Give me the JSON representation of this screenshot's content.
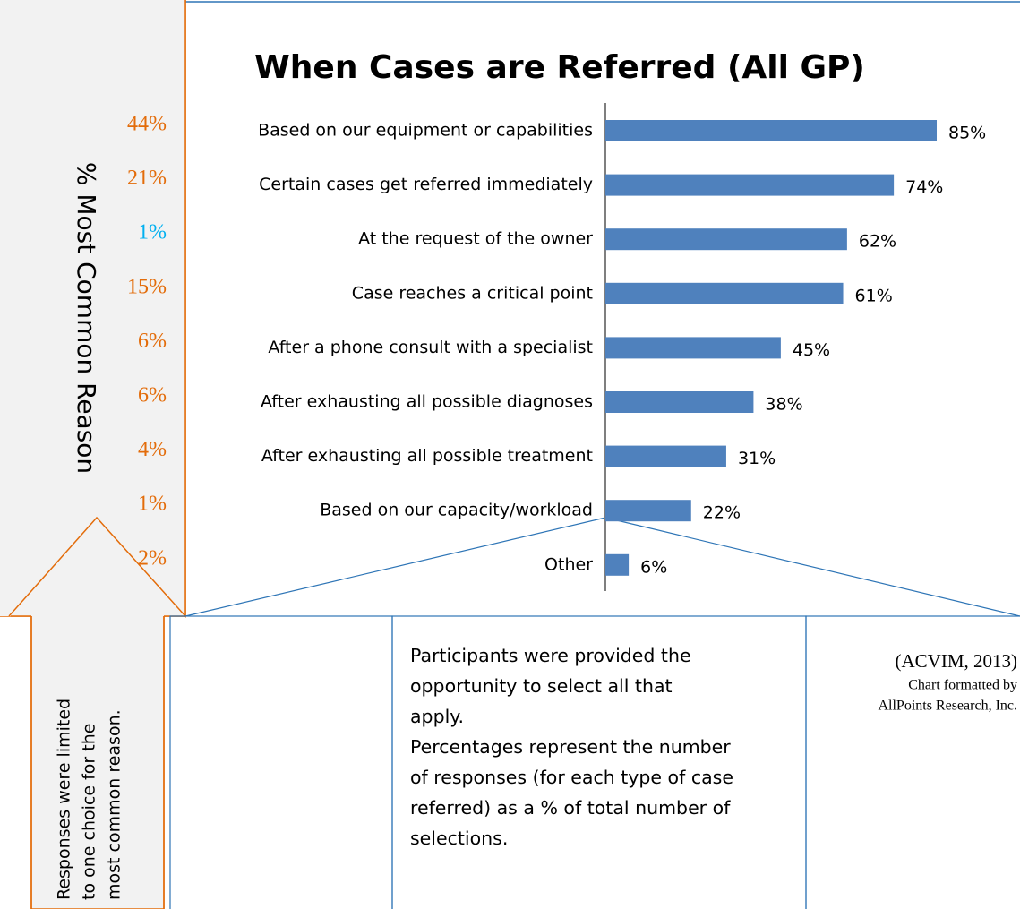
{
  "chart_data": {
    "type": "bar",
    "orientation": "horizontal",
    "title": "When Cases are Referred (All GP)",
    "categories": [
      "Based on our equipment or capabilities",
      "Certain cases get referred immediately",
      "At the request of the owner",
      "Case reaches a critical point",
      "After a phone consult with a specialist",
      "After exhausting all possible diagnoses",
      "After exhausting all possible treatment",
      "Based on our capacity/workload",
      "Other"
    ],
    "values": [
      85,
      74,
      62,
      61,
      45,
      38,
      31,
      22,
      6
    ],
    "value_labels": [
      "85%",
      "74%",
      "62%",
      "61%",
      "45%",
      "38%",
      "31%",
      "22%",
      "6%"
    ],
    "color": "#4f81bd",
    "xlim": [
      0,
      100
    ],
    "most_common_reason": {
      "label": "% Most Common Reason",
      "values": [
        44,
        21,
        1,
        15,
        6,
        6,
        4,
        1,
        2
      ],
      "value_labels": [
        "44%",
        "21%",
        "1%",
        "15%",
        "6%",
        "6%",
        "4%",
        "1%",
        "2%"
      ],
      "colors": [
        "#e36c0a",
        "#e36c0a",
        "#00b0f0",
        "#e36c0a",
        "#e36c0a",
        "#e36c0a",
        "#e36c0a",
        "#e36c0a",
        "#e36c0a"
      ]
    },
    "arrow_note": [
      "Responses were limited",
      "to one choice for the",
      "most common reason."
    ],
    "note": [
      "Participants were provided the",
      "opportunity to select all that",
      "apply.",
      "Percentages represent the number",
      "of responses (for each type of case",
      "referred) as a % of total number of",
      "selections."
    ],
    "source": [
      "(ACVIM, 2013)",
      "Chart formatted by",
      "AllPoints Research, Inc."
    ]
  }
}
